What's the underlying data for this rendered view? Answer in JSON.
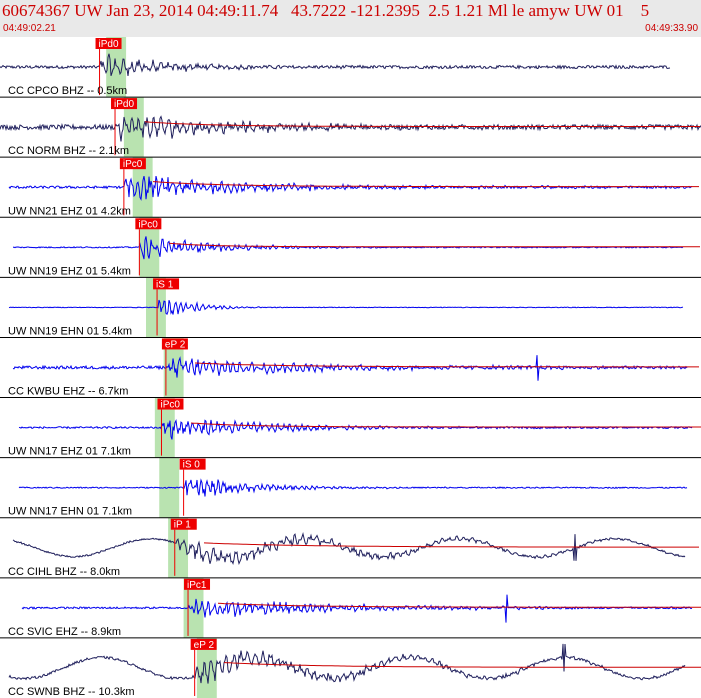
{
  "header": {
    "title": "60674367 UW Jan 23, 2014 04:49:11.74   43.7222 -121.2395  2.5 1.21 Ml le amyw UW 01    5",
    "start_time": "04:49:02.21",
    "end_time": "04:49:33.90"
  },
  "colors": {
    "header_bg": "#e9e9e9",
    "title_text": "#cc0000",
    "pick_box": "#ee0000",
    "pick_text": "#ffffff",
    "coda": "#cc0000",
    "window_band": "#b9e3b0",
    "trace_short_period": "#1f1f5c",
    "trace_broadband": "#0000ee",
    "trace_label": "#000000"
  },
  "chart_data": {
    "type": "line",
    "title": "60674367 UW Jan 23, 2014 04:49:11.74   43.7222 -121.2395  2.5 1.21 Ml le amyw UW 01    5",
    "x_axis": {
      "units": "seconds",
      "start": "04:49:02.21",
      "end": "04:49:33.90",
      "range": [
        0,
        31.69
      ]
    },
    "series": [
      {
        "name": "CC CPCO BHZ -- 0.5km",
        "color": "dark",
        "pick": "iPd0",
        "pick_time": 4.5,
        "trace_start": 0.0,
        "trace_end": 30.3,
        "noise": 0.05,
        "amp": 0.42,
        "decay": 3.0,
        "freq": 9,
        "long_period": 0,
        "coda": false,
        "window": [
          4.8,
          5.7
        ],
        "spike": null
      },
      {
        "name": "CC NORM BHZ -- 2.1km",
        "color": "dark",
        "pick": "iPd0",
        "pick_time": 5.2,
        "trace_start": 0.0,
        "trace_end": 31.69,
        "noise": 0.08,
        "amp": 0.45,
        "decay": 5.0,
        "freq": 9,
        "long_period": 0,
        "coda": true,
        "window": [
          5.6,
          6.5
        ],
        "spike": null
      },
      {
        "name": "UW NN21 EHZ 01 4.2km",
        "color": "blue",
        "pick": "iPc0",
        "pick_time": 5.6,
        "trace_start": 0.45,
        "trace_end": 31.3,
        "noise": 0.04,
        "amp": 0.45,
        "decay": 5.5,
        "freq": 11,
        "long_period": 0,
        "coda": true,
        "window": [
          6.0,
          6.9
        ],
        "spike": null
      },
      {
        "name": "UW NN19 EHZ 01 5.4km",
        "color": "blue",
        "pick": "iPc0",
        "pick_time": 6.3,
        "trace_start": 0.6,
        "trace_end": 30.9,
        "noise": 0.02,
        "amp": 0.42,
        "decay": 3.2,
        "freq": 12,
        "long_period": 0,
        "coda": true,
        "window": [
          6.3,
          7.2
        ],
        "spike": null
      },
      {
        "name": "UW NN19 EHN 01 5.4km",
        "color": "blue",
        "pick": "iS 1",
        "pick_time": 7.1,
        "trace_start": 0.45,
        "trace_end": 30.9,
        "noise": 0.01,
        "amp": 0.46,
        "decay": 1.4,
        "freq": 12,
        "long_period": 0,
        "coda": false,
        "window": [
          6.6,
          7.5
        ],
        "spike": null
      },
      {
        "name": "CC KWBU EHZ -- 6.7km",
        "color": "blue",
        "pick": "eP 2",
        "pick_time": 7.5,
        "trace_start": 0.6,
        "trace_end": 31.1,
        "noise": 0.05,
        "amp": 0.33,
        "decay": 6.5,
        "freq": 11,
        "long_period": 0,
        "coda": true,
        "window": [
          7.4,
          8.3
        ],
        "spike": 24.3
      },
      {
        "name": "UW NN17 EHZ 01 7.1km",
        "color": "blue",
        "pick": "iPc0",
        "pick_time": 7.3,
        "trace_start": 0.9,
        "trace_end": 31.3,
        "noise": 0.03,
        "amp": 0.4,
        "decay": 4.5,
        "freq": 11,
        "long_period": 0,
        "coda": true,
        "window": [
          7.0,
          7.9
        ],
        "spike": null
      },
      {
        "name": "UW NN17 EHN 01 7.1km",
        "color": "blue",
        "pick": "iS 0",
        "pick_time": 8.3,
        "trace_start": 0.9,
        "trace_end": 31.1,
        "noise": 0.02,
        "amp": 0.4,
        "decay": 3.0,
        "freq": 12,
        "long_period": 0,
        "coda": false,
        "window": [
          7.2,
          8.1
        ],
        "spike": null
      },
      {
        "name": "CC CIHL BHZ -- 8.0km",
        "color": "dark",
        "pick": "iP 1",
        "pick_time": 7.9,
        "trace_start": 0.6,
        "trace_end": 31.0,
        "noise": 0.03,
        "amp": 0.34,
        "decay": 8.0,
        "freq": 9,
        "long_period": 0.3,
        "coda": true,
        "window": [
          7.6,
          8.5
        ],
        "spike": 26.0
      },
      {
        "name": "CC SVIC EHZ -- 8.9km",
        "color": "blue",
        "pick": "iPc1",
        "pick_time": 8.5,
        "trace_start": 1.0,
        "trace_end": 31.3,
        "noise": 0.03,
        "amp": 0.34,
        "decay": 6.5,
        "freq": 11,
        "long_period": 0,
        "coda": true,
        "window": [
          8.3,
          9.2
        ],
        "spike": 22.9
      },
      {
        "name": "CC SWNB BHZ -- 10.3km",
        "color": "dark",
        "pick": "eP 2",
        "pick_time": 8.8,
        "trace_start": 0.45,
        "trace_end": 31.0,
        "noise": 0.04,
        "amp": 0.4,
        "decay": 7.0,
        "freq": 9,
        "long_period": 0.35,
        "coda": true,
        "window": [
          8.9,
          9.8
        ],
        "spike": 25.5
      }
    ]
  }
}
